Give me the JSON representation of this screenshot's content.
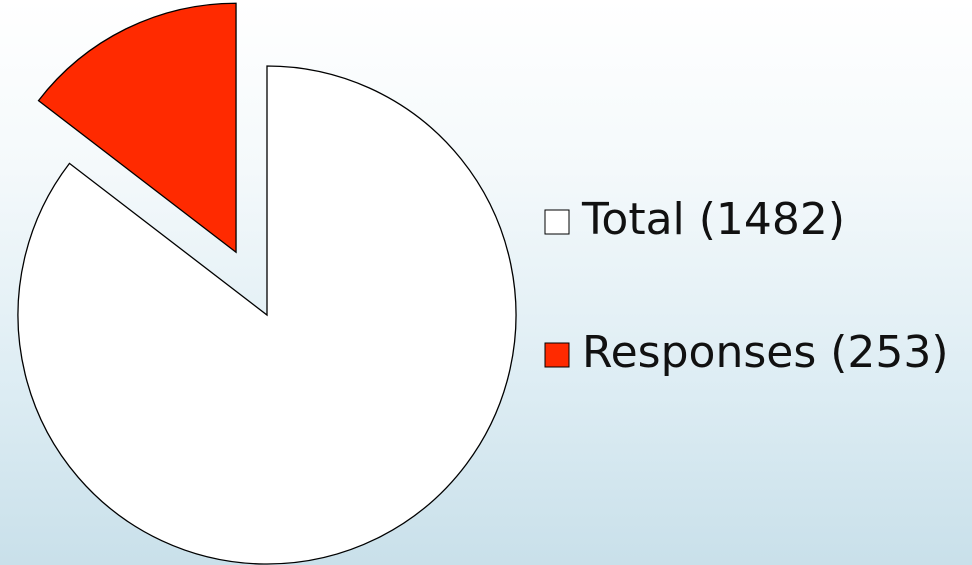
{
  "chart_data": {
    "type": "pie",
    "categories": [
      "Total (1482)",
      "Responses (253)"
    ],
    "values": [
      1482,
      253
    ],
    "colors": [
      "#ffffff",
      "#ff2a00"
    ]
  }
}
